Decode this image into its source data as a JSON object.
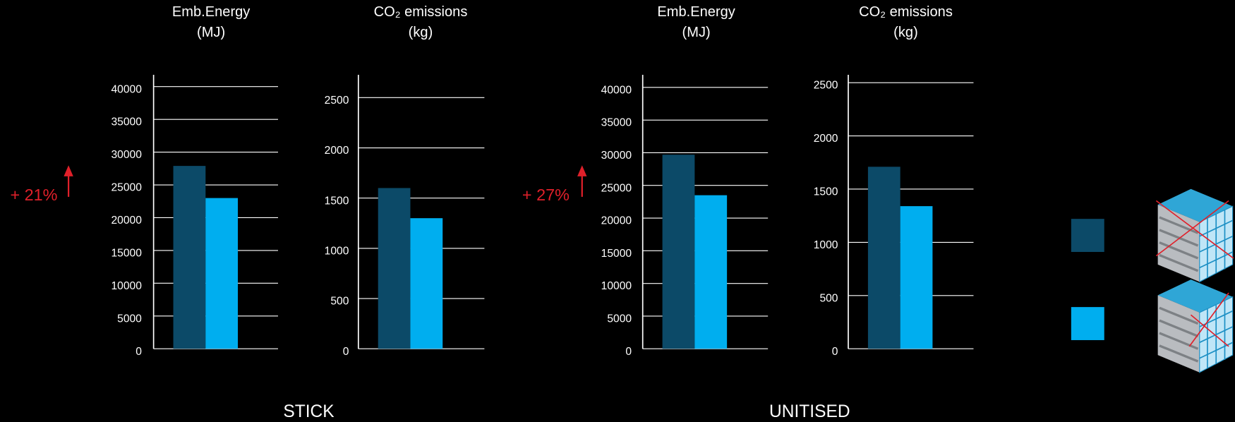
{
  "chart_data": [
    {
      "type": "bar",
      "title": "Emb.Energy",
      "subtitle": "(MJ)",
      "categories": [
        null,
        null
      ],
      "values": [
        27900,
        23000
      ],
      "colors": [
        "#0c4a68",
        "#00aeef"
      ],
      "ylim": [
        0,
        40000
      ],
      "yticks": [
        0,
        5000,
        10000,
        15000,
        20000,
        25000,
        30000,
        35000,
        40000
      ],
      "grid": true,
      "annotation": "+ 21%"
    },
    {
      "type": "bar",
      "title": "CO₂ emissions",
      "subtitle": "(kg)",
      "categories": [
        null,
        null
      ],
      "values": [
        1600,
        1300
      ],
      "colors": [
        "#0c4a68",
        "#00aeef"
      ],
      "ylim": [
        0,
        2500
      ],
      "yticks": [
        0,
        500,
        1000,
        1500,
        2000,
        2500
      ],
      "grid": true
    },
    {
      "type": "bar",
      "title": "Emb.Energy",
      "subtitle": "(MJ)",
      "categories": [
        null,
        null
      ],
      "values": [
        29700,
        23500
      ],
      "colors": [
        "#0c4a68",
        "#00aeef"
      ],
      "ylim": [
        0,
        40000
      ],
      "yticks": [
        0,
        5000,
        10000,
        15000,
        20000,
        25000,
        30000,
        35000,
        40000
      ],
      "grid": true,
      "annotation": "+ 27%"
    },
    {
      "type": "bar",
      "title": "CO₂ emissions",
      "subtitle": "(kg)",
      "categories": [
        null,
        null
      ],
      "values": [
        1710,
        1340
      ],
      "colors": [
        "#0c4a68",
        "#00aeef"
      ],
      "ylim": [
        0,
        2500
      ],
      "yticks": [
        0,
        500,
        1000,
        1500,
        2000,
        2500
      ],
      "grid": true
    }
  ],
  "group_labels": [
    "STICK",
    "UNITISED"
  ]
}
